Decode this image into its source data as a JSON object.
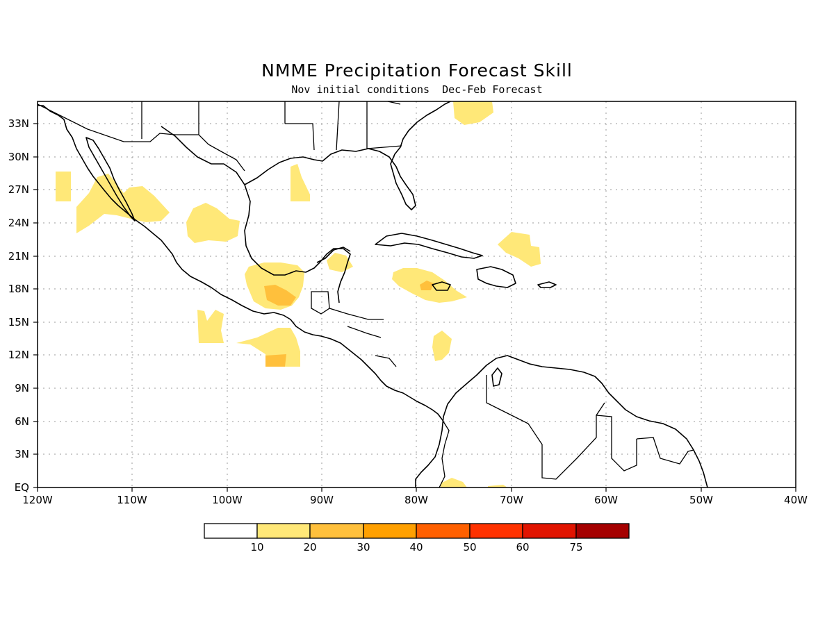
{
  "title": "NMME Precipitation Forecast Skill",
  "subtitle": "Nov initial conditions  Dec-Feb Forecast",
  "map": {
    "lon_range": [
      -120,
      -40
    ],
    "lat_range": [
      0,
      35
    ],
    "x_ticks": [
      "120W",
      "110W",
      "100W",
      "90W",
      "80W",
      "70W",
      "60W",
      "50W",
      "40W"
    ],
    "y_ticks": [
      "EQ",
      "3N",
      "6N",
      "9N",
      "12N",
      "15N",
      "18N",
      "21N",
      "24N",
      "27N",
      "30N",
      "33N"
    ],
    "grid": "dotted"
  },
  "legend": {
    "colors": [
      "#ffffff",
      "#ffe878",
      "#ffc03c",
      "#ffa000",
      "#ff6000",
      "#ff3200",
      "#e11400",
      "#a50000"
    ],
    "labels": [
      "10",
      "20",
      "30",
      "40",
      "50",
      "60",
      "75"
    ]
  }
}
